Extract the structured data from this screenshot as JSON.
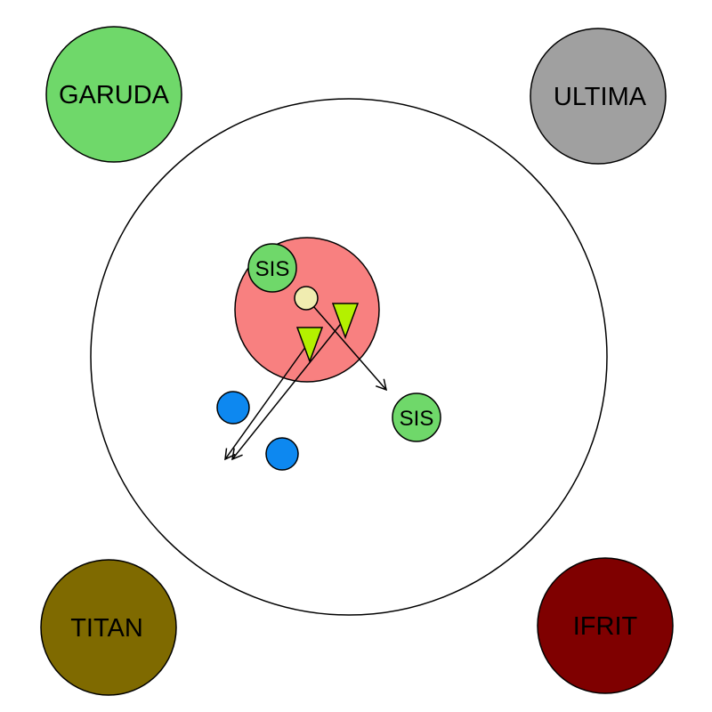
{
  "corners": {
    "top_left": {
      "label": "GARUDA",
      "fill": "#6fd86a"
    },
    "top_right": {
      "label": "ULTIMA",
      "fill": "#a0a0a0"
    },
    "bottom_left": {
      "label": "TITAN",
      "fill": "#7f6a00"
    },
    "bottom_right": {
      "label": "IFRIT",
      "fill": "#7f0000"
    }
  },
  "arena": {
    "fill": "#ffffff",
    "stroke": "#000000"
  },
  "danger_zone": {
    "fill": "#f88080"
  },
  "sis_markers": [
    {
      "label": "SIS",
      "fill": "#6fd86a"
    },
    {
      "label": "SIS",
      "fill": "#6fd86a"
    }
  ],
  "player_dot": {
    "fill": "#f0ecb0"
  },
  "triangles": {
    "fill": "#b4f000"
  },
  "blue_dots": {
    "fill": "#0d88f0"
  },
  "label_color": "#000000"
}
